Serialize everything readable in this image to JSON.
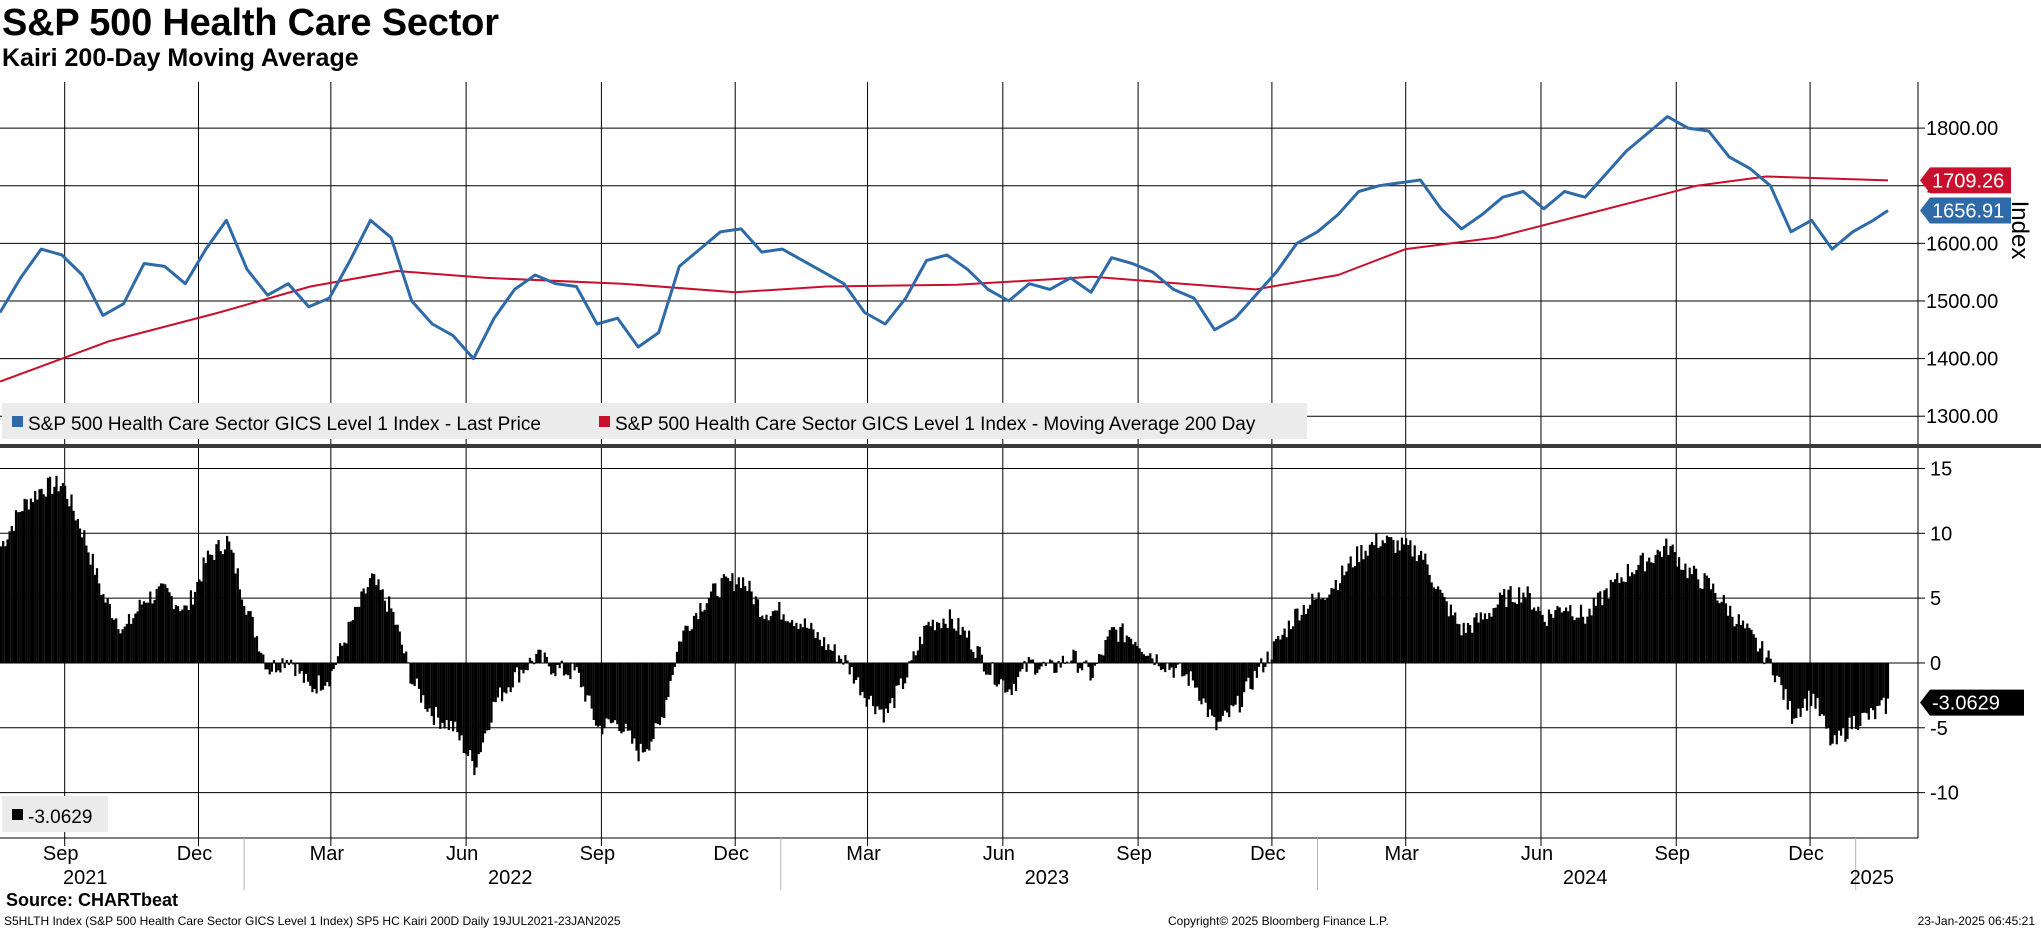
{
  "title": "S&P 500 Health Care Sector",
  "subtitle": "Kairi 200-Day Moving Average",
  "source": "Source: CHARTbeat",
  "footer": {
    "left": "S5HLTH Index (S&P 500 Health Care Sector GICS Level 1 Index) SP5 HC Kairi 200D  Daily 19JUL2021-23JAN2025",
    "center": "Copyright© 2025 Bloomberg Finance L.P.",
    "right": "23-Jan-2025 06:45:21"
  },
  "colors": {
    "price": "#2e6aa8",
    "ma": "#c8102e",
    "kairi": "#000000",
    "grid": "#000000",
    "legend_bg": "#ebebeb"
  },
  "chart_data": [
    {
      "type": "line",
      "ylabel": "Index",
      "ylim": [
        1250,
        1880
      ],
      "yticks": [
        "1800.00",
        "1700.00",
        "1600.00",
        "1500.00",
        "1400.00",
        "1300.00"
      ],
      "ytick_values": [
        1800,
        1700,
        1600,
        1500,
        1400,
        1300
      ],
      "grid": true,
      "legend_position": "bottom-left",
      "x_start": "2021-07-19",
      "x_end": "2025-01-23",
      "series": [
        {
          "name": "S&P 500 Health Care Sector GICS Level 1 Index - Last Price",
          "color": "#2e6aa8",
          "last_label": "1656.91",
          "points": [
            [
              "2021-07-19",
              1480
            ],
            [
              "2021-08-02",
              1540
            ],
            [
              "2021-08-16",
              1590
            ],
            [
              "2021-08-30",
              1580
            ],
            [
              "2021-09-13",
              1545
            ],
            [
              "2021-09-27",
              1475
            ],
            [
              "2021-10-11",
              1495
            ],
            [
              "2021-10-25",
              1565
            ],
            [
              "2021-11-08",
              1560
            ],
            [
              "2021-11-22",
              1530
            ],
            [
              "2021-12-06",
              1590
            ],
            [
              "2021-12-20",
              1640
            ],
            [
              "2022-01-03",
              1555
            ],
            [
              "2022-01-17",
              1510
            ],
            [
              "2022-01-31",
              1530
            ],
            [
              "2022-02-14",
              1490
            ],
            [
              "2022-02-28",
              1505
            ],
            [
              "2022-03-14",
              1570
            ],
            [
              "2022-03-28",
              1640
            ],
            [
              "2022-04-11",
              1610
            ],
            [
              "2022-04-25",
              1500
            ],
            [
              "2022-05-09",
              1460
            ],
            [
              "2022-05-23",
              1440
            ],
            [
              "2022-06-06",
              1400
            ],
            [
              "2022-06-20",
              1470
            ],
            [
              "2022-07-04",
              1520
            ],
            [
              "2022-07-18",
              1545
            ],
            [
              "2022-08-01",
              1530
            ],
            [
              "2022-08-15",
              1525
            ],
            [
              "2022-08-29",
              1460
            ],
            [
              "2022-09-12",
              1470
            ],
            [
              "2022-09-26",
              1420
            ],
            [
              "2022-10-10",
              1445
            ],
            [
              "2022-10-24",
              1560
            ],
            [
              "2022-11-07",
              1590
            ],
            [
              "2022-11-21",
              1620
            ],
            [
              "2022-12-05",
              1625
            ],
            [
              "2022-12-19",
              1585
            ],
            [
              "2023-01-02",
              1590
            ],
            [
              "2023-01-16",
              1570
            ],
            [
              "2023-01-30",
              1550
            ],
            [
              "2023-02-13",
              1530
            ],
            [
              "2023-02-27",
              1480
            ],
            [
              "2023-03-13",
              1460
            ],
            [
              "2023-03-27",
              1505
            ],
            [
              "2023-04-10",
              1570
            ],
            [
              "2023-04-24",
              1580
            ],
            [
              "2023-05-08",
              1555
            ],
            [
              "2023-05-22",
              1520
            ],
            [
              "2023-06-05",
              1500
            ],
            [
              "2023-06-19",
              1530
            ],
            [
              "2023-07-03",
              1520
            ],
            [
              "2023-07-17",
              1540
            ],
            [
              "2023-07-31",
              1515
            ],
            [
              "2023-08-14",
              1575
            ],
            [
              "2023-08-28",
              1565
            ],
            [
              "2023-09-11",
              1550
            ],
            [
              "2023-09-25",
              1520
            ],
            [
              "2023-10-09",
              1505
            ],
            [
              "2023-10-23",
              1450
            ],
            [
              "2023-11-06",
              1470
            ],
            [
              "2023-11-20",
              1510
            ],
            [
              "2023-12-04",
              1550
            ],
            [
              "2023-12-18",
              1600
            ],
            [
              "2024-01-01",
              1620
            ],
            [
              "2024-01-15",
              1650
            ],
            [
              "2024-01-29",
              1690
            ],
            [
              "2024-02-12",
              1700
            ],
            [
              "2024-02-26",
              1705
            ],
            [
              "2024-03-11",
              1710
            ],
            [
              "2024-03-25",
              1660
            ],
            [
              "2024-04-08",
              1625
            ],
            [
              "2024-04-22",
              1650
            ],
            [
              "2024-05-06",
              1680
            ],
            [
              "2024-05-20",
              1690
            ],
            [
              "2024-06-03",
              1660
            ],
            [
              "2024-06-17",
              1690
            ],
            [
              "2024-07-01",
              1680
            ],
            [
              "2024-07-15",
              1720
            ],
            [
              "2024-07-29",
              1760
            ],
            [
              "2024-08-12",
              1790
            ],
            [
              "2024-08-26",
              1820
            ],
            [
              "2024-09-09",
              1800
            ],
            [
              "2024-09-23",
              1795
            ],
            [
              "2024-10-07",
              1750
            ],
            [
              "2024-10-21",
              1730
            ],
            [
              "2024-11-04",
              1700
            ],
            [
              "2024-11-18",
              1620
            ],
            [
              "2024-12-02",
              1640
            ],
            [
              "2024-12-16",
              1590
            ],
            [
              "2024-12-30",
              1620
            ],
            [
              "2025-01-13",
              1640
            ],
            [
              "2025-01-23",
              1656.91
            ]
          ]
        },
        {
          "name": "S&P 500 Health Care Sector GICS Level 1 Index - Moving Average 200 Day",
          "color": "#c8102e",
          "last_label": "1709.26",
          "points": [
            [
              "2021-07-19",
              1360
            ],
            [
              "2021-10-01",
              1430
            ],
            [
              "2021-12-15",
              1480
            ],
            [
              "2022-02-15",
              1525
            ],
            [
              "2022-04-15",
              1552
            ],
            [
              "2022-06-15",
              1540
            ],
            [
              "2022-09-15",
              1530
            ],
            [
              "2022-12-01",
              1515
            ],
            [
              "2023-02-01",
              1525
            ],
            [
              "2023-05-01",
              1528
            ],
            [
              "2023-08-01",
              1542
            ],
            [
              "2023-10-01",
              1530
            ],
            [
              "2023-11-20",
              1520
            ],
            [
              "2024-01-15",
              1545
            ],
            [
              "2024-03-01",
              1590
            ],
            [
              "2024-05-01",
              1610
            ],
            [
              "2024-07-01",
              1650
            ],
            [
              "2024-09-15",
              1700
            ],
            [
              "2024-11-01",
              1716
            ],
            [
              "2025-01-23",
              1709.26
            ]
          ]
        }
      ]
    },
    {
      "type": "bar",
      "ylim": [
        -13.5,
        16.5
      ],
      "yticks": [
        "15",
        "10",
        "5",
        "0",
        "-5",
        "-10"
      ],
      "ytick_values": [
        15,
        10,
        5,
        0,
        -5,
        -10
      ],
      "grid": true,
      "legend_position": "bottom-left",
      "series": [
        {
          "name": "-3.0629",
          "color": "#000000",
          "last_label": "-3.0629",
          "points": [
            [
              "2021-07-19",
              9
            ],
            [
              "2021-08-02",
              12
            ],
            [
              "2021-08-16",
              13.5
            ],
            [
              "2021-08-30",
              13.8
            ],
            [
              "2021-09-13",
              10
            ],
            [
              "2021-09-27",
              5
            ],
            [
              "2021-10-11",
              2.5
            ],
            [
              "2021-10-25",
              5
            ],
            [
              "2021-11-08",
              5.5
            ],
            [
              "2021-11-22",
              4
            ],
            [
              "2021-12-06",
              8
            ],
            [
              "2021-12-20",
              9.5
            ],
            [
              "2022-01-03",
              4
            ],
            [
              "2022-01-17",
              -0.5
            ],
            [
              "2022-01-31",
              0.5
            ],
            [
              "2022-02-14",
              -2
            ],
            [
              "2022-02-28",
              -1
            ],
            [
              "2022-03-14",
              3
            ],
            [
              "2022-03-28",
              6.5
            ],
            [
              "2022-04-11",
              4
            ],
            [
              "2022-04-25",
              -1.5
            ],
            [
              "2022-05-09",
              -4
            ],
            [
              "2022-05-23",
              -5
            ],
            [
              "2022-06-06",
              -8
            ],
            [
              "2022-06-20",
              -3
            ],
            [
              "2022-07-04",
              -1
            ],
            [
              "2022-07-18",
              0.5
            ],
            [
              "2022-08-01",
              -0.5
            ],
            [
              "2022-08-15",
              -0.8
            ],
            [
              "2022-08-29",
              -5
            ],
            [
              "2022-09-12",
              -4.5
            ],
            [
              "2022-09-26",
              -7
            ],
            [
              "2022-10-10",
              -5
            ],
            [
              "2022-10-24",
              2
            ],
            [
              "2022-11-07",
              4.5
            ],
            [
              "2022-11-21",
              6
            ],
            [
              "2022-12-05",
              6.5
            ],
            [
              "2022-12-19",
              4
            ],
            [
              "2023-01-02",
              4
            ],
            [
              "2023-01-16",
              3
            ],
            [
              "2023-01-30",
              1.5
            ],
            [
              "2023-02-13",
              0.2
            ],
            [
              "2023-02-27",
              -2.5
            ],
            [
              "2023-03-13",
              -4
            ],
            [
              "2023-03-27",
              -1
            ],
            [
              "2023-04-10",
              3
            ],
            [
              "2023-04-24",
              3.5
            ],
            [
              "2023-05-08",
              2
            ],
            [
              "2023-05-22",
              -0.5
            ],
            [
              "2023-06-05",
              -2
            ],
            [
              "2023-06-19",
              0
            ],
            [
              "2023-07-03",
              -0.5
            ],
            [
              "2023-07-17",
              0.5
            ],
            [
              "2023-07-31",
              -1
            ],
            [
              "2023-08-14",
              2.5
            ],
            [
              "2023-08-28",
              2
            ],
            [
              "2023-09-11",
              0.5
            ],
            [
              "2023-09-25",
              -0.5
            ],
            [
              "2023-10-09",
              -1.5
            ],
            [
              "2023-10-23",
              -5
            ],
            [
              "2023-11-06",
              -3.5
            ],
            [
              "2023-11-20",
              -0.8
            ],
            [
              "2023-12-04",
              1.5
            ],
            [
              "2023-12-18",
              4
            ],
            [
              "2024-01-01",
              5
            ],
            [
              "2024-01-15",
              6.5
            ],
            [
              "2024-01-29",
              8.5
            ],
            [
              "2024-02-12",
              9.5
            ],
            [
              "2024-02-26",
              9
            ],
            [
              "2024-03-11",
              8.5
            ],
            [
              "2024-03-25",
              5
            ],
            [
              "2024-04-08",
              2.5
            ],
            [
              "2024-04-22",
              3.5
            ],
            [
              "2024-05-06",
              5
            ],
            [
              "2024-05-20",
              5.5
            ],
            [
              "2024-06-03",
              3.5
            ],
            [
              "2024-06-17",
              4.5
            ],
            [
              "2024-07-01",
              3.5
            ],
            [
              "2024-07-15",
              5.5
            ],
            [
              "2024-07-29",
              7
            ],
            [
              "2024-08-12",
              8
            ],
            [
              "2024-08-26",
              9
            ],
            [
              "2024-09-09",
              7
            ],
            [
              "2024-09-23",
              6
            ],
            [
              "2024-10-07",
              4
            ],
            [
              "2024-10-21",
              2
            ],
            [
              "2024-11-04",
              0
            ],
            [
              "2024-11-18",
              -4
            ],
            [
              "2024-12-02",
              -2.5
            ],
            [
              "2024-12-16",
              -6.5
            ],
            [
              "2024-12-30",
              -4.5
            ],
            [
              "2025-01-13",
              -4
            ],
            [
              "2025-01-23",
              -3.0629
            ]
          ]
        }
      ]
    }
  ],
  "x_axis": {
    "month_labels": [
      {
        "date": "2021-09-01",
        "label": "Sep"
      },
      {
        "date": "2021-12-01",
        "label": "Dec"
      },
      {
        "date": "2022-03-01",
        "label": "Mar"
      },
      {
        "date": "2022-06-01",
        "label": "Jun"
      },
      {
        "date": "2022-09-01",
        "label": "Sep"
      },
      {
        "date": "2022-12-01",
        "label": "Dec"
      },
      {
        "date": "2023-03-01",
        "label": "Mar"
      },
      {
        "date": "2023-06-01",
        "label": "Jun"
      },
      {
        "date": "2023-09-01",
        "label": "Sep"
      },
      {
        "date": "2023-12-01",
        "label": "Dec"
      },
      {
        "date": "2024-03-01",
        "label": "Mar"
      },
      {
        "date": "2024-06-01",
        "label": "Jun"
      },
      {
        "date": "2024-09-01",
        "label": "Sep"
      },
      {
        "date": "2024-12-01",
        "label": "Dec"
      }
    ],
    "year_labels": [
      {
        "date": "2021-09-15",
        "label": "2021"
      },
      {
        "date": "2022-07-01",
        "label": "2022"
      },
      {
        "date": "2023-07-01",
        "label": "2023"
      },
      {
        "date": "2024-07-01",
        "label": "2024"
      },
      {
        "date": "2025-01-12",
        "label": "2025"
      }
    ],
    "year_boundaries": [
      "2022-01-01",
      "2023-01-01",
      "2024-01-01",
      "2025-01-01"
    ]
  }
}
